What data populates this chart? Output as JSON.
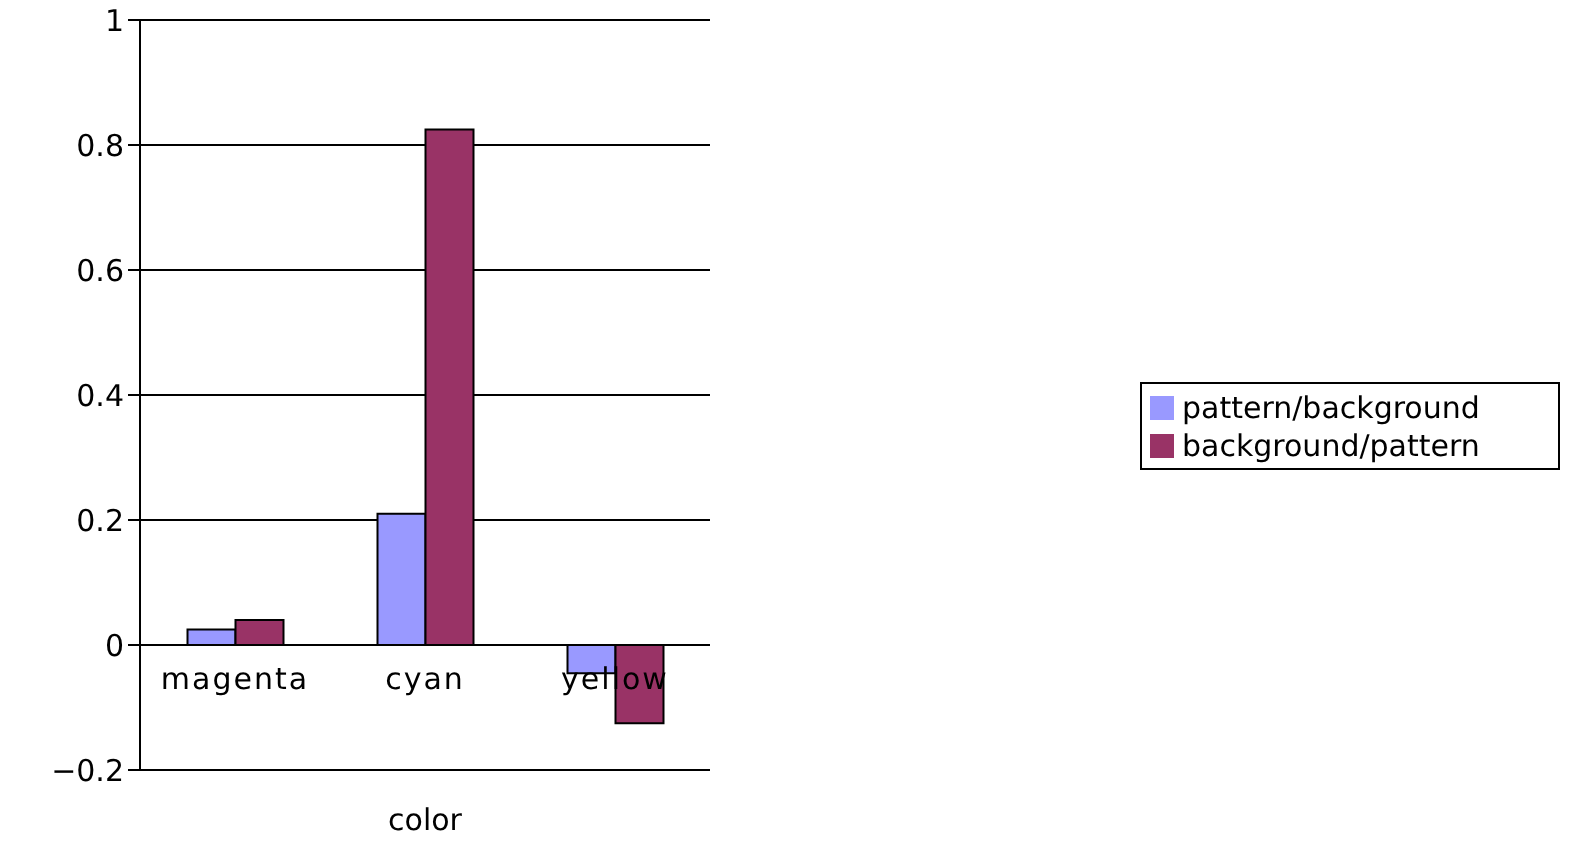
{
  "chart_data": {
    "type": "bar",
    "xlabel": "color",
    "categories": [
      "magenta",
      "cyan",
      "yellow"
    ],
    "series": [
      {
        "name": "pattern/background",
        "color": "#9999ff",
        "values": [
          0.025,
          0.21,
          -0.045
        ]
      },
      {
        "name": "background/pattern",
        "color": "#993366",
        "values": [
          0.04,
          0.825,
          -0.125
        ]
      }
    ],
    "ylim": [
      -0.2,
      1
    ],
    "yticks": [
      -0.2,
      0,
      0.2,
      0.4,
      0.6,
      0.8,
      1
    ],
    "grid": "y",
    "legend": "right"
  }
}
